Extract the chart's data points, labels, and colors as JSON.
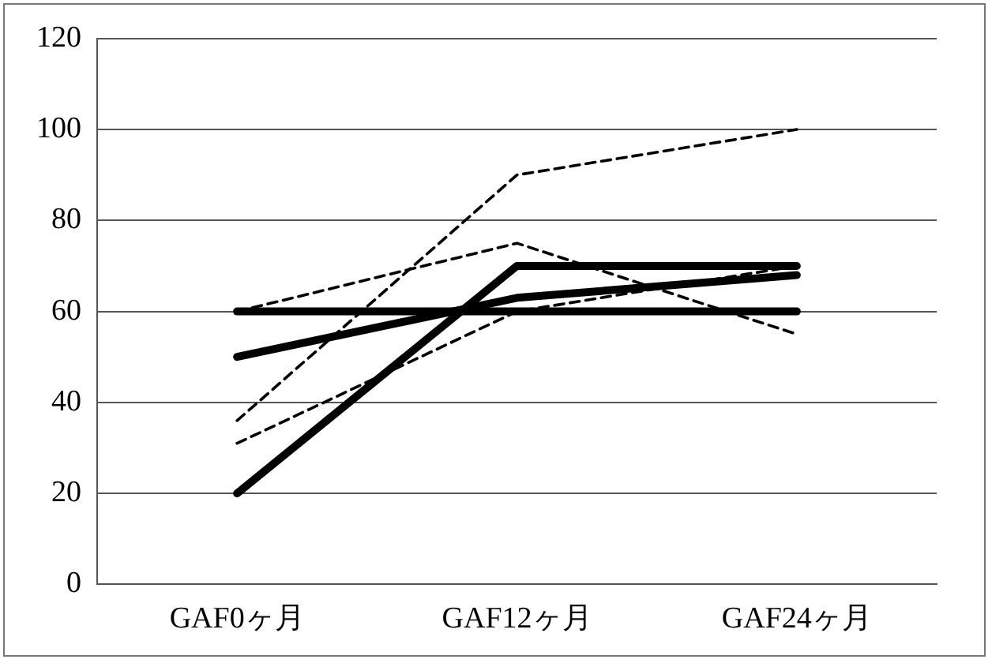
{
  "chart_data": {
    "type": "line",
    "categories": [
      "GAF0ヶ月",
      "GAF12ヶ月",
      "GAF24ヶ月"
    ],
    "series": [
      {
        "color": "#000000",
        "line_style": "solid",
        "values": [
          20,
          70,
          70
        ]
      },
      {
        "color": "#000000",
        "line_style": "solid",
        "values": [
          50,
          63,
          68
        ]
      },
      {
        "color": "#000000",
        "line_style": "solid",
        "values": [
          60,
          60,
          60
        ]
      },
      {
        "color": "#000000",
        "line_style": "dashed",
        "values": [
          36,
          90,
          100
        ]
      },
      {
        "color": "#000000",
        "line_style": "dashed",
        "values": [
          31,
          60,
          70
        ]
      },
      {
        "color": "#000000",
        "line_style": "dashed",
        "values": [
          60,
          75,
          55
        ]
      }
    ],
    "ylim": [
      0,
      120
    ],
    "yticks": [
      0,
      20,
      40,
      60,
      80,
      100,
      120
    ],
    "grid": "y",
    "legend": false,
    "marker": "none"
  }
}
